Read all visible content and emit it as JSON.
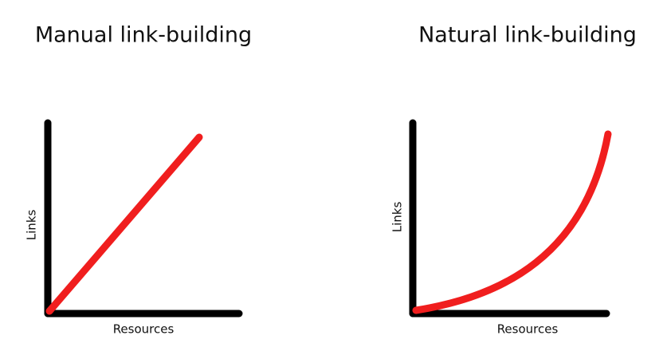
{
  "panels": [
    {
      "title": "Manual link-building",
      "x_label": "Resources",
      "y_label": "Links"
    },
    {
      "title": "Natural link-building",
      "x_label": "Resources",
      "y_label": "Links"
    }
  ]
}
